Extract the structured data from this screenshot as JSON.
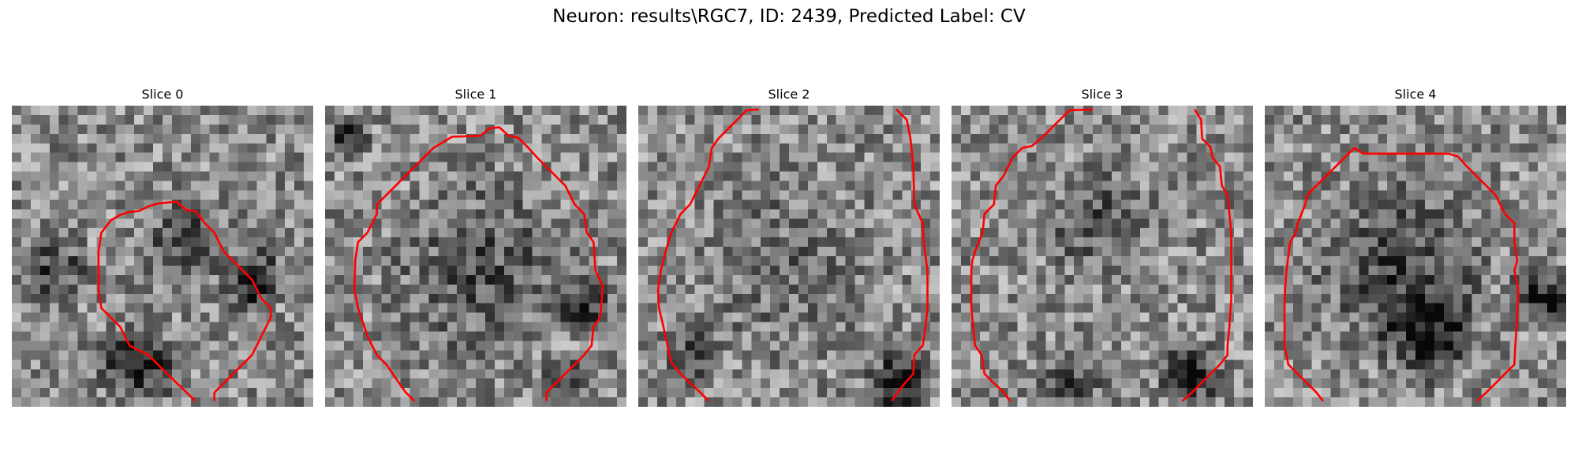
{
  "figure": {
    "title": "Neuron: results\\RGC7, ID: 2439, Predicted Label: CV"
  },
  "contour_color": "#ff0000",
  "panels": [
    {
      "title": "Slice 0",
      "grid": [
        32,
        32
      ],
      "contour": [
        [
          19.5,
          31.4
        ],
        [
          16.5,
          28.5
        ],
        [
          14.5,
          26.5
        ],
        [
          12.5,
          25.5
        ],
        [
          11.5,
          23.5
        ],
        [
          9.5,
          21.5
        ],
        [
          9.2,
          19.5
        ],
        [
          9.2,
          15.5
        ],
        [
          9.5,
          13.5
        ],
        [
          10.5,
          12.2
        ],
        [
          11.5,
          11.6
        ],
        [
          12.5,
          11.3
        ],
        [
          13.5,
          11.2
        ],
        [
          14.5,
          10.7
        ],
        [
          15.5,
          10.4
        ],
        [
          16.5,
          10.3
        ],
        [
          17.5,
          10.2
        ],
        [
          18.5,
          11.1
        ],
        [
          19.5,
          11.2
        ],
        [
          20.5,
          12.5
        ],
        [
          21.5,
          13.5
        ],
        [
          22.5,
          15.5
        ],
        [
          23.5,
          16.5
        ],
        [
          24.5,
          17.5
        ],
        [
          25.5,
          18.5
        ],
        [
          26.5,
          20.5
        ],
        [
          27.5,
          21.5
        ],
        [
          27.5,
          22.5
        ],
        [
          26.5,
          24.5
        ],
        [
          25.5,
          26.5
        ],
        [
          23.5,
          28.5
        ],
        [
          22.5,
          29.5
        ],
        [
          21.5,
          30.5
        ],
        [
          21.5,
          31.4
        ]
      ]
    },
    {
      "title": "Slice 1",
      "grid": [
        32,
        32
      ],
      "contour": [
        [
          9.5,
          31.4
        ],
        [
          8.5,
          30.4
        ],
        [
          6.5,
          27.5
        ],
        [
          5.5,
          26.5
        ],
        [
          4.5,
          24.5
        ],
        [
          3.5,
          21.5
        ],
        [
          3.1,
          19.5
        ],
        [
          3.2,
          16.5
        ],
        [
          3.5,
          14.5
        ],
        [
          4.5,
          13.5
        ],
        [
          5.5,
          11.5
        ],
        [
          5.5,
          10.5
        ],
        [
          6.5,
          9.5
        ],
        [
          7.5,
          8.5
        ],
        [
          8.5,
          7.5
        ],
        [
          9.5,
          6.5
        ],
        [
          10.5,
          5.5
        ],
        [
          11.5,
          4.5
        ],
        [
          13.5,
          3.3
        ],
        [
          16.5,
          3.2
        ],
        [
          17.5,
          2.4
        ],
        [
          18.5,
          2.3
        ],
        [
          19.5,
          3.2
        ],
        [
          20.5,
          3.4
        ],
        [
          21.5,
          4.4
        ],
        [
          22.5,
          5.5
        ],
        [
          23.5,
          6.5
        ],
        [
          24.5,
          7.5
        ],
        [
          25.5,
          8.5
        ],
        [
          26.5,
          10.5
        ],
        [
          27.5,
          11.5
        ],
        [
          27.8,
          13.5
        ],
        [
          28.5,
          14.5
        ],
        [
          28.7,
          17.5
        ],
        [
          29.5,
          19.2
        ],
        [
          29.2,
          22.5
        ],
        [
          28.5,
          23.5
        ],
        [
          28.3,
          25.5
        ],
        [
          27.5,
          26.5
        ],
        [
          26.5,
          27.5
        ],
        [
          25.5,
          28.5
        ],
        [
          24.5,
          29.5
        ],
        [
          23.5,
          30.5
        ],
        [
          23.5,
          31.4
        ]
      ]
    },
    {
      "title": "Slice 2",
      "grid": [
        32,
        32
      ],
      "contour": [
        [
          7.5,
          31.4
        ],
        [
          6.5,
          30.4
        ],
        [
          5.5,
          29.5
        ],
        [
          4.5,
          28.5
        ],
        [
          3.5,
          27.3
        ],
        [
          2.9,
          24.5
        ],
        [
          2.2,
          21.5
        ],
        [
          2.1,
          19.5
        ],
        [
          2.4,
          17.5
        ],
        [
          2.9,
          15.5
        ],
        [
          3.5,
          13.5
        ],
        [
          4.5,
          11.5
        ],
        [
          5.5,
          10.5
        ],
        [
          6.5,
          8.5
        ],
        [
          7.5,
          6.5
        ],
        [
          7.8,
          4.5
        ],
        [
          8.5,
          3.5
        ],
        [
          9.5,
          2.5
        ],
        [
          10.5,
          1.5
        ],
        [
          11.5,
          0.5
        ],
        [
          12.8,
          0.4
        ]
      ]
    },
    {
      "title": "Slice 2",
      "grid": [
        32,
        32
      ],
      "contour": [
        [
          27.4,
          0.4
        ],
        [
          28.5,
          1.5
        ],
        [
          28.9,
          3.5
        ],
        [
          29.2,
          6.5
        ],
        [
          29.3,
          10.5
        ],
        [
          30.2,
          12.5
        ],
        [
          30.3,
          14.5
        ],
        [
          30.7,
          17.5
        ],
        [
          30.7,
          21.5
        ],
        [
          30.5,
          23.5
        ],
        [
          30.2,
          25.5
        ],
        [
          29.3,
          26.5
        ],
        [
          29.2,
          28.5
        ],
        [
          28.3,
          29.5
        ],
        [
          27.5,
          30.5
        ],
        [
          26.9,
          31.4
        ]
      ]
    },
    {
      "title": "Slice 3",
      "grid": [
        32,
        32
      ],
      "contour": [
        [
          6.2,
          31.4
        ],
        [
          5.5,
          30.4
        ],
        [
          4.5,
          29.5
        ],
        [
          3.5,
          28.5
        ],
        [
          3.2,
          26.5
        ],
        [
          2.5,
          25.5
        ],
        [
          2.3,
          23.5
        ],
        [
          2.1,
          21.5
        ],
        [
          2.1,
          17.5
        ],
        [
          2.2,
          16.5
        ],
        [
          2.5,
          15.5
        ],
        [
          3.3,
          13.5
        ],
        [
          3.5,
          11.5
        ],
        [
          4.5,
          10.5
        ],
        [
          4.7,
          8.5
        ],
        [
          5.5,
          7.5
        ],
        [
          6.5,
          5.5
        ],
        [
          7.5,
          4.5
        ],
        [
          8.5,
          4.3
        ],
        [
          9.5,
          3.5
        ],
        [
          10.5,
          2.5
        ],
        [
          11.5,
          1.5
        ],
        [
          12.5,
          0.5
        ],
        [
          15.0,
          0.4
        ]
      ]
    },
    {
      "title": "Slice 3",
      "grid": [
        32,
        32
      ],
      "contour": [
        [
          25.8,
          0.4
        ],
        [
          26.5,
          1.5
        ],
        [
          26.6,
          3.5
        ],
        [
          27.5,
          4.4
        ],
        [
          27.7,
          5.5
        ],
        [
          28.5,
          6.5
        ],
        [
          28.7,
          8.5
        ],
        [
          29.3,
          9.5
        ],
        [
          29.5,
          11.5
        ],
        [
          29.7,
          13.5
        ],
        [
          29.7,
          20.5
        ],
        [
          29.5,
          23.5
        ],
        [
          29.3,
          25.5
        ],
        [
          29.3,
          26.5
        ],
        [
          28.5,
          27.5
        ],
        [
          27.5,
          28.5
        ],
        [
          26.5,
          29.5
        ],
        [
          25.5,
          30.5
        ],
        [
          24.5,
          31.4
        ]
      ]
    },
    {
      "title": "Slice 4",
      "grid": [
        32,
        32
      ],
      "contour": [
        [
          6.2,
          31.4
        ],
        [
          5.5,
          30.5
        ],
        [
          4.5,
          29.5
        ],
        [
          3.5,
          28.5
        ],
        [
          2.5,
          27.5
        ],
        [
          2.1,
          25.5
        ],
        [
          2.1,
          20.5
        ],
        [
          2.3,
          17.5
        ],
        [
          2.7,
          14.5
        ],
        [
          3.3,
          13.5
        ],
        [
          3.5,
          12.5
        ],
        [
          4.3,
          10.5
        ],
        [
          4.5,
          9.5
        ],
        [
          5.5,
          8.5
        ],
        [
          6.5,
          7.5
        ],
        [
          7.5,
          6.5
        ],
        [
          8.5,
          5.5
        ],
        [
          9.5,
          4.5
        ],
        [
          10.5,
          5.1
        ],
        [
          10.5,
          5.1
        ],
        [
          14.5,
          5.1
        ],
        [
          19.5,
          5.1
        ],
        [
          20.5,
          5.4
        ],
        [
          21.5,
          6.5
        ],
        [
          22.5,
          7.5
        ],
        [
          23.5,
          8.5
        ],
        [
          24.5,
          9.5
        ],
        [
          25.5,
          11.5
        ],
        [
          26.5,
          12.5
        ],
        [
          26.5,
          14.5
        ],
        [
          26.8,
          16.5
        ],
        [
          26.5,
          17.5
        ],
        [
          26.9,
          19.5
        ],
        [
          26.8,
          22.5
        ],
        [
          26.6,
          25.5
        ],
        [
          26.5,
          27.5
        ],
        [
          25.5,
          28.5
        ],
        [
          24.5,
          29.5
        ],
        [
          23.5,
          30.5
        ],
        [
          22.5,
          31.4
        ]
      ]
    }
  ]
}
